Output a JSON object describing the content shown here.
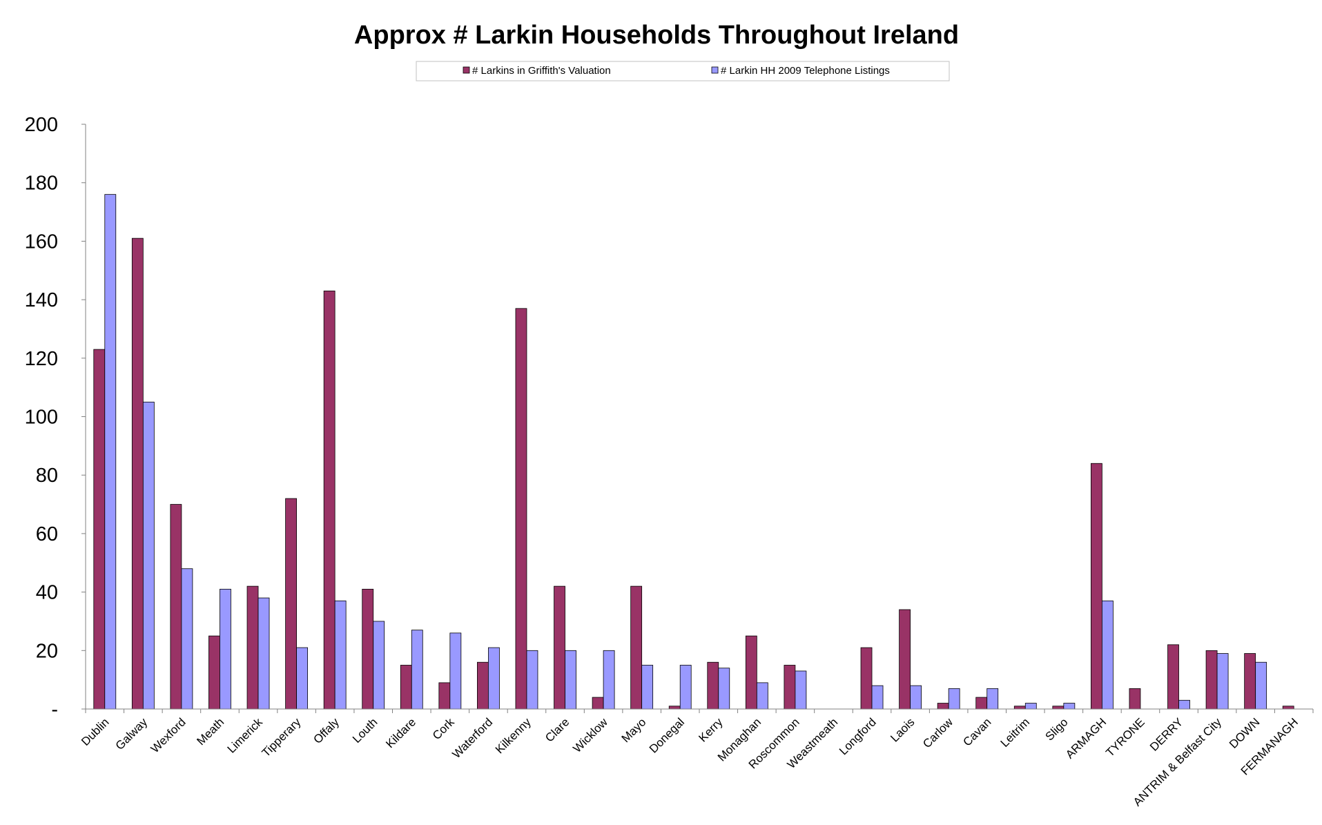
{
  "chart_data": {
    "type": "bar",
    "title": "Approx # Larkin Households Throughout Ireland",
    "xlabel": "",
    "ylabel": "",
    "ylim": [
      0,
      200
    ],
    "yticks": [
      {
        "value": 0,
        "label": "-"
      },
      {
        "value": 20,
        "label": "20"
      },
      {
        "value": 40,
        "label": "40"
      },
      {
        "value": 60,
        "label": "60"
      },
      {
        "value": 80,
        "label": "80"
      },
      {
        "value": 100,
        "label": "100"
      },
      {
        "value": 120,
        "label": "120"
      },
      {
        "value": 140,
        "label": "140"
      },
      {
        "value": 160,
        "label": "160"
      },
      {
        "value": 180,
        "label": "180"
      },
      {
        "value": 200,
        "label": "200"
      }
    ],
    "grid": false,
    "legend_position": "top-center",
    "categories": [
      "Dublin",
      "Galway",
      "Wexford",
      "Meath",
      "Limerick",
      "Tipperary",
      "Offaly",
      "Louth",
      "Kildare",
      "Cork",
      "Waterford",
      "Kilkenny",
      "Clare",
      "Wicklow",
      "Mayo",
      "Donegal",
      "Kerry",
      "Monaghan",
      "Roscommon",
      "Weastmeath",
      "Longford",
      "Laois",
      "Carlow",
      "Cavan",
      "Leitrim",
      "Sligo",
      "ARMAGH",
      "TYRONE",
      "DERRY",
      "ANTRIM & Belfast City",
      "DOWN",
      "FERMANAGH"
    ],
    "series": [
      {
        "name": "# Larkins in Griffith's Valuation",
        "color": "#993366",
        "values": [
          123,
          161,
          70,
          25,
          42,
          72,
          143,
          41,
          15,
          9,
          16,
          137,
          42,
          4,
          42,
          1,
          16,
          25,
          15,
          0,
          21,
          34,
          2,
          4,
          1,
          1,
          84,
          7,
          22,
          20,
          19,
          1
        ]
      },
      {
        "name": "# Larkin HH 2009 Telephone Listings",
        "color": "#9999ff",
        "values": [
          176,
          105,
          48,
          41,
          38,
          21,
          37,
          30,
          27,
          26,
          21,
          20,
          20,
          20,
          15,
          15,
          14,
          9,
          13,
          0,
          8,
          8,
          7,
          7,
          2,
          2,
          37,
          0,
          3,
          19,
          16,
          0
        ]
      }
    ]
  }
}
